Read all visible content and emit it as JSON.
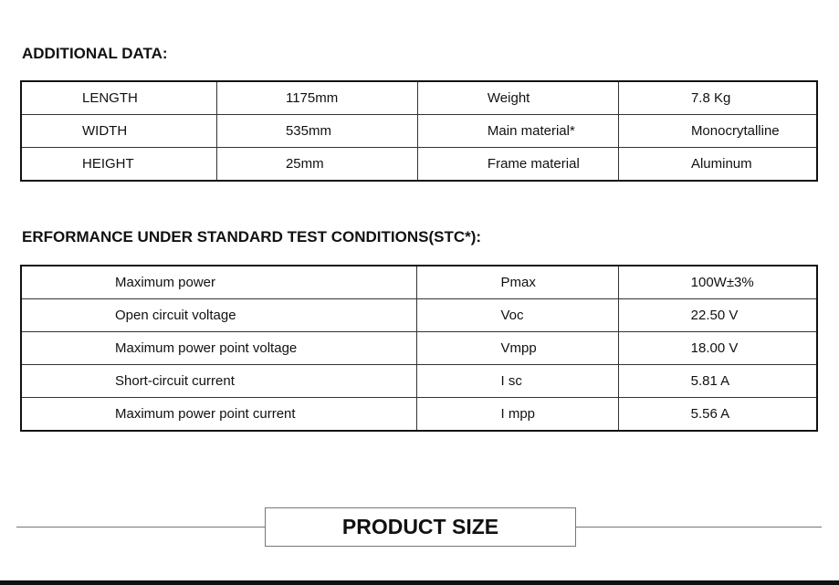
{
  "additional": {
    "heading": "ADDITIONAL DATA:",
    "rows": [
      [
        "LENGTH",
        "1175mm",
        "Weight",
        "7.8 Kg"
      ],
      [
        "WIDTH",
        "535mm",
        "Main material*",
        "Monocrytalline"
      ],
      [
        "HEIGHT",
        "25mm",
        "Frame material",
        "Aluminum"
      ]
    ]
  },
  "performance": {
    "heading": "ERFORMANCE UNDER STANDARD TEST CONDITIONS(STC*):",
    "rows": [
      [
        "Maximum power",
        "Pmax",
        "100W±3%"
      ],
      [
        "Open circuit voltage",
        "Voc",
        "22.50 V"
      ],
      [
        "Maximum power point voltage",
        "Vmpp",
        "18.00 V"
      ],
      [
        "Short-circuit current",
        "I sc",
        "5.81 A"
      ],
      [
        "Maximum power point current",
        "I mpp",
        "5.56 A"
      ]
    ]
  },
  "product_size": {
    "label": "PRODUCT SIZE"
  }
}
